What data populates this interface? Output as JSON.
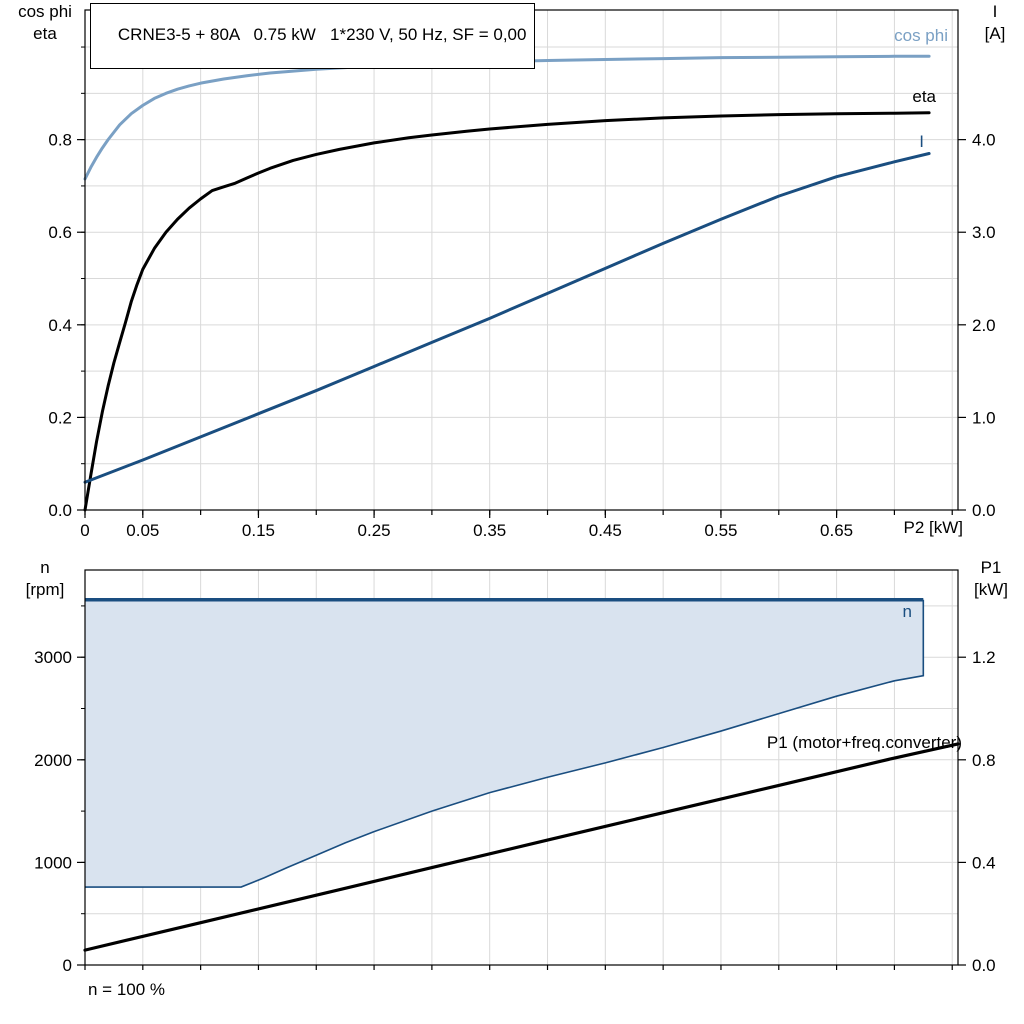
{
  "colors": {
    "grid": "#d9d9d9",
    "axis": "#000000",
    "text": "#000000",
    "cos_phi": "#7aa0c4",
    "current": "#1a4e80",
    "n_line": "#1a4e80",
    "region_fill": "#d9e3ef",
    "eta": "#000000",
    "p1": "#000000"
  },
  "labels": {
    "top_left": [
      "cos phi",
      "eta"
    ],
    "top_right": [
      "I",
      "[A]"
    ],
    "bottom_left": [
      "n",
      "[rpm]"
    ],
    "bottom_right": [
      "P1",
      "[kW]"
    ]
  },
  "chart_data": [
    {
      "id": "motor-performance-curves",
      "type": "line",
      "title": "CRNE3-5 + 80A   0.75 kW   1*230 V, 50 Hz, SF = 0,00",
      "xlabel": "P2 [kW]",
      "x_range": [
        0,
        0.755
      ],
      "x_grid_step": 0.05,
      "x_ticks": {
        "values": [
          0,
          0.05,
          0.15,
          0.25,
          0.35,
          0.45,
          0.55,
          0.65
        ],
        "labels": [
          "0",
          "0.05",
          "0.15",
          "0.25",
          "0.35",
          "0.45",
          "0.55",
          "0.65"
        ]
      },
      "left_axis": {
        "name": "cos phi / eta",
        "range": [
          0,
          1.08
        ],
        "grid_step": 0.1,
        "tick_values": [
          0,
          0.2,
          0.4,
          0.6,
          0.8
        ],
        "tick_labels": [
          "0.0",
          "0.2",
          "0.4",
          "0.6",
          "0.8"
        ]
      },
      "right_axis": {
        "name": "I [A]",
        "range": [
          0,
          5.4
        ],
        "tick_values": [
          0,
          1,
          2,
          3,
          4
        ],
        "tick_labels": [
          "0.0",
          "1.0",
          "2.0",
          "3.0",
          "4.0"
        ]
      },
      "series": [
        {
          "key": "cos-phi",
          "name": "cos phi",
          "axis": "left",
          "color_key": "cos_phi",
          "width": 3,
          "points": [
            [
              0,
              0.715
            ],
            [
              0.005,
              0.74
            ],
            [
              0.01,
              0.762
            ],
            [
              0.015,
              0.782
            ],
            [
              0.02,
              0.8
            ],
            [
              0.03,
              0.832
            ],
            [
              0.04,
              0.856
            ],
            [
              0.05,
              0.874
            ],
            [
              0.06,
              0.889
            ],
            [
              0.07,
              0.9
            ],
            [
              0.08,
              0.909
            ],
            [
              0.09,
              0.916
            ],
            [
              0.1,
              0.922
            ],
            [
              0.12,
              0.931
            ],
            [
              0.14,
              0.938
            ],
            [
              0.16,
              0.944
            ],
            [
              0.18,
              0.948
            ],
            [
              0.2,
              0.952
            ],
            [
              0.25,
              0.959
            ],
            [
              0.3,
              0.964
            ],
            [
              0.35,
              0.968
            ],
            [
              0.4,
              0.971
            ],
            [
              0.45,
              0.973
            ],
            [
              0.5,
              0.975
            ],
            [
              0.55,
              0.977
            ],
            [
              0.6,
              0.978
            ],
            [
              0.65,
              0.979
            ],
            [
              0.7,
              0.98
            ],
            [
              0.73,
              0.98
            ]
          ]
        },
        {
          "key": "eta",
          "name": "eta",
          "axis": "left",
          "color_key": "eta",
          "width": 3,
          "points": [
            [
              0,
              0
            ],
            [
              0.005,
              0.075
            ],
            [
              0.01,
              0.148
            ],
            [
              0.015,
              0.212
            ],
            [
              0.02,
              0.268
            ],
            [
              0.025,
              0.318
            ],
            [
              0.03,
              0.362
            ],
            [
              0.035,
              0.405
            ],
            [
              0.04,
              0.45
            ],
            [
              0.045,
              0.487
            ],
            [
              0.05,
              0.52
            ],
            [
              0.06,
              0.565
            ],
            [
              0.07,
              0.6
            ],
            [
              0.08,
              0.628
            ],
            [
              0.09,
              0.652
            ],
            [
              0.1,
              0.672
            ],
            [
              0.11,
              0.69
            ],
            [
              0.12,
              0.698
            ],
            [
              0.13,
              0.706
            ],
            [
              0.14,
              0.717
            ],
            [
              0.15,
              0.728
            ],
            [
              0.16,
              0.738
            ],
            [
              0.18,
              0.755
            ],
            [
              0.2,
              0.768
            ],
            [
              0.22,
              0.779
            ],
            [
              0.25,
              0.793
            ],
            [
              0.28,
              0.804
            ],
            [
              0.3,
              0.81
            ],
            [
              0.33,
              0.818
            ],
            [
              0.35,
              0.823
            ],
            [
              0.4,
              0.833
            ],
            [
              0.45,
              0.841
            ],
            [
              0.5,
              0.847
            ],
            [
              0.55,
              0.851
            ],
            [
              0.6,
              0.854
            ],
            [
              0.65,
              0.856
            ],
            [
              0.7,
              0.857
            ],
            [
              0.73,
              0.858
            ]
          ]
        },
        {
          "key": "current",
          "name": "I",
          "axis": "right",
          "color_key": "current",
          "width": 3,
          "points": [
            [
              0,
              0.3
            ],
            [
              0.05,
              0.54
            ],
            [
              0.1,
              0.79
            ],
            [
              0.15,
              1.04
            ],
            [
              0.2,
              1.29
            ],
            [
              0.25,
              1.55
            ],
            [
              0.3,
              1.81
            ],
            [
              0.35,
              2.07
            ],
            [
              0.4,
              2.34
            ],
            [
              0.45,
              2.61
            ],
            [
              0.5,
              2.88
            ],
            [
              0.55,
              3.14
            ],
            [
              0.6,
              3.39
            ],
            [
              0.65,
              3.6
            ],
            [
              0.7,
              3.76
            ],
            [
              0.73,
              3.85
            ]
          ]
        }
      ]
    },
    {
      "id": "speed-and-p1-curves",
      "type": "line",
      "x_range": [
        0,
        0.755
      ],
      "x_grid_step": 0.05,
      "x_ticks": {
        "values": [],
        "labels": []
      },
      "left_axis": {
        "name": "n [rpm]",
        "range": [
          0,
          3850
        ],
        "grid_step": 500,
        "tick_values": [
          0,
          1000,
          2000,
          3000
        ],
        "tick_labels": [
          "0",
          "1000",
          "2000",
          "3000"
        ]
      },
      "right_axis": {
        "name": "P1 [kW]",
        "range": [
          0,
          1.54
        ],
        "tick_values": [
          0,
          0.4,
          0.8,
          1.2
        ],
        "tick_labels": [
          "0.0",
          "0.4",
          "0.8",
          "1.2"
        ]
      },
      "region": {
        "name": "speed-operating-range",
        "label": "n",
        "axis": "left",
        "fill_key": "region_fill",
        "line_key": "n_line",
        "upper": 3560,
        "x_end": 0.725,
        "lower_points": [
          [
            0,
            760
          ],
          [
            0.135,
            760
          ],
          [
            0.155,
            850
          ],
          [
            0.175,
            950
          ],
          [
            0.2,
            1070
          ],
          [
            0.225,
            1190
          ],
          [
            0.25,
            1300
          ],
          [
            0.3,
            1500
          ],
          [
            0.35,
            1680
          ],
          [
            0.4,
            1830
          ],
          [
            0.45,
            1970
          ],
          [
            0.5,
            2120
          ],
          [
            0.55,
            2280
          ],
          [
            0.6,
            2450
          ],
          [
            0.65,
            2620
          ],
          [
            0.7,
            2770
          ],
          [
            0.725,
            2820
          ]
        ]
      },
      "series": [
        {
          "key": "p1",
          "name": "P1 (motor+freq.converter)",
          "axis": "right",
          "color_key": "p1",
          "width": 3.2,
          "points": [
            [
              0,
              0.058
            ],
            [
              0.1,
              0.165
            ],
            [
              0.2,
              0.272
            ],
            [
              0.3,
              0.38
            ],
            [
              0.4,
              0.487
            ],
            [
              0.5,
              0.594
            ],
            [
              0.6,
              0.7
            ],
            [
              0.7,
              0.807
            ],
            [
              0.755,
              0.862
            ]
          ]
        }
      ],
      "note": "n = 100 %"
    }
  ]
}
